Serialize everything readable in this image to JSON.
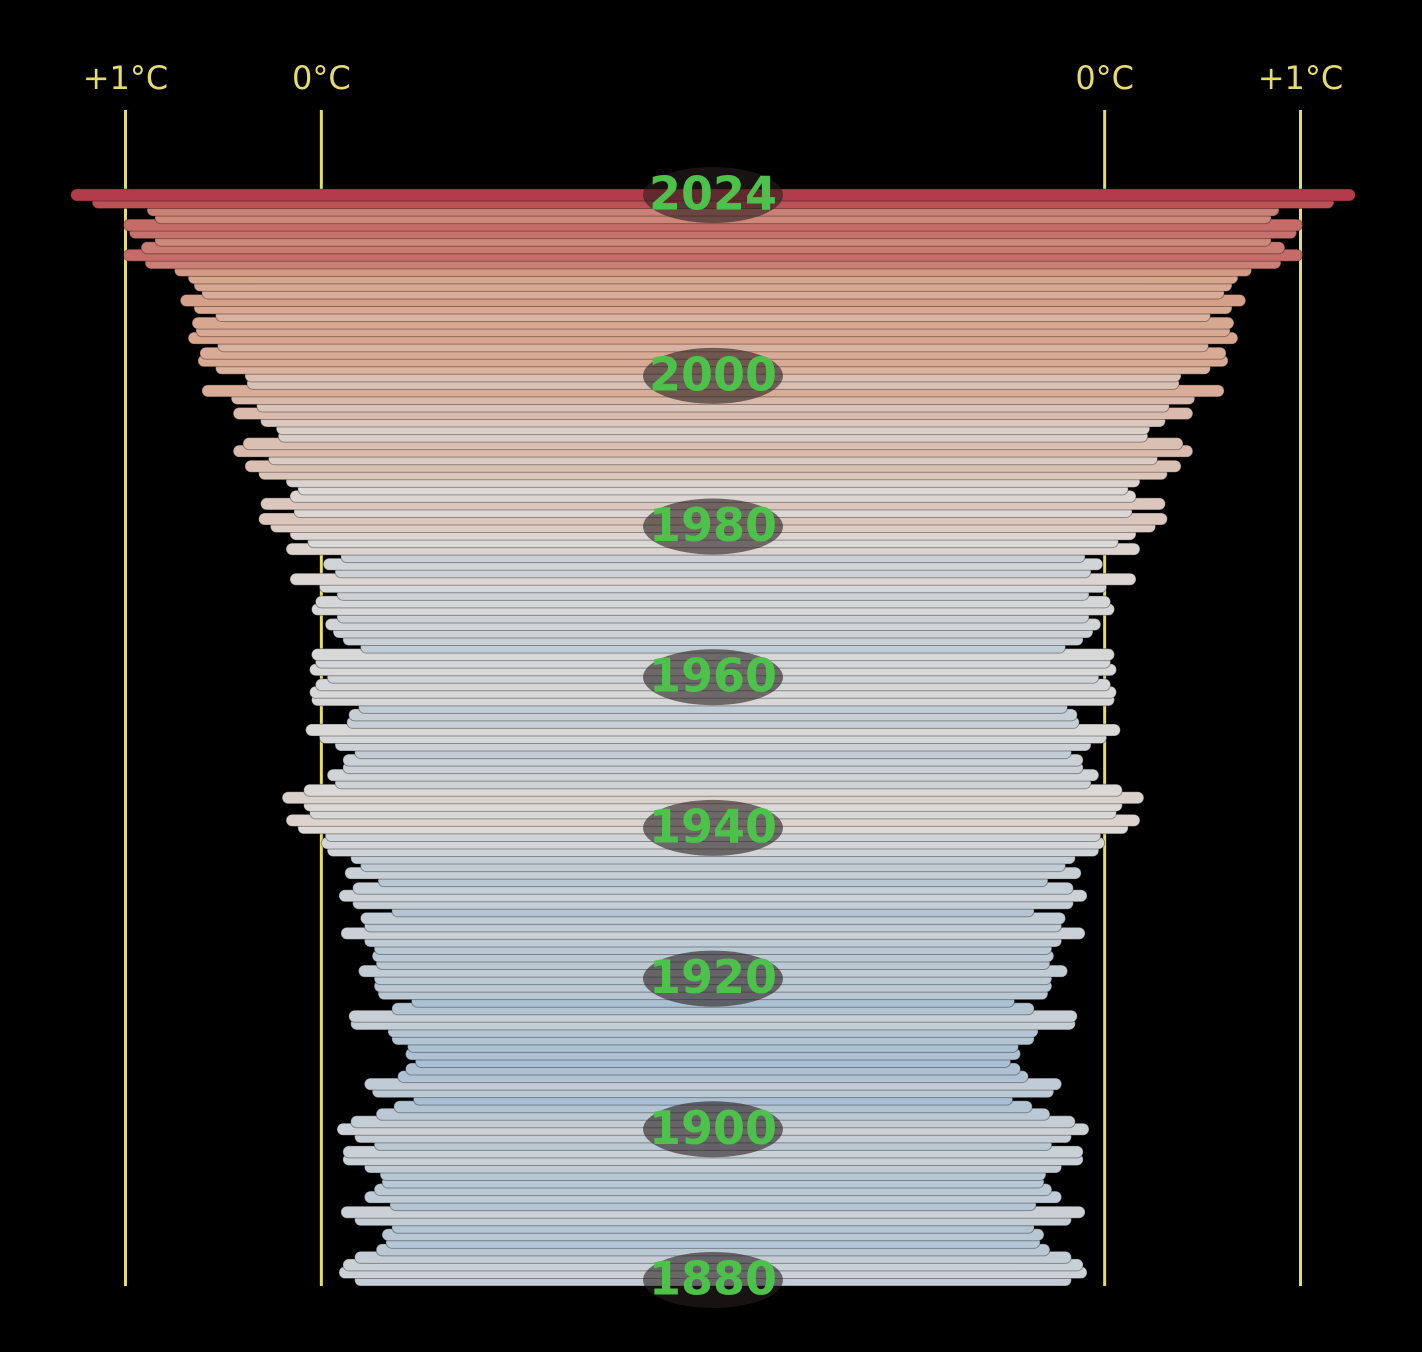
{
  "chart_data": {
    "type": "spiral-side",
    "x": [
      1880,
      1881,
      1882,
      1883,
      1884,
      1885,
      1886,
      1887,
      1888,
      1889,
      1890,
      1891,
      1892,
      1893,
      1894,
      1895,
      1896,
      1897,
      1898,
      1899,
      1900,
      1901,
      1902,
      1903,
      1904,
      1905,
      1906,
      1907,
      1908,
      1909,
      1910,
      1911,
      1912,
      1913,
      1914,
      1915,
      1916,
      1917,
      1918,
      1919,
      1920,
      1921,
      1922,
      1923,
      1924,
      1925,
      1926,
      1927,
      1928,
      1929,
      1930,
      1931,
      1932,
      1933,
      1934,
      1935,
      1936,
      1937,
      1938,
      1939,
      1940,
      1941,
      1942,
      1943,
      1944,
      1945,
      1946,
      1947,
      1948,
      1949,
      1950,
      1951,
      1952,
      1953,
      1954,
      1955,
      1956,
      1957,
      1958,
      1959,
      1960,
      1961,
      1962,
      1963,
      1964,
      1965,
      1966,
      1967,
      1968,
      1969,
      1970,
      1971,
      1972,
      1973,
      1974,
      1975,
      1976,
      1977,
      1978,
      1979,
      1980,
      1981,
      1982,
      1983,
      1984,
      1985,
      1986,
      1987,
      1988,
      1989,
      1990,
      1991,
      1992,
      1993,
      1994,
      1995,
      1996,
      1997,
      1998,
      1999,
      2000,
      2001,
      2002,
      2003,
      2004,
      2005,
      2006,
      2007,
      2008,
      2009,
      2010,
      2011,
      2012,
      2013,
      2014,
      2015,
      2016,
      2017,
      2018,
      2019,
      2020,
      2021,
      2022,
      2023,
      2024
    ],
    "values": [
      -0.17,
      -0.09,
      -0.11,
      -0.17,
      -0.28,
      -0.33,
      -0.31,
      -0.36,
      -0.17,
      -0.1,
      -0.35,
      -0.22,
      -0.27,
      -0.31,
      -0.3,
      -0.22,
      -0.11,
      -0.11,
      -0.27,
      -0.17,
      -0.08,
      -0.15,
      -0.28,
      -0.37,
      -0.47,
      -0.26,
      -0.22,
      -0.39,
      -0.43,
      -0.48,
      -0.43,
      -0.44,
      -0.36,
      -0.34,
      -0.15,
      -0.14,
      -0.36,
      -0.46,
      -0.29,
      -0.27,
      -0.27,
      -0.19,
      -0.28,
      -0.26,
      -0.27,
      -0.22,
      -0.1,
      -0.22,
      -0.2,
      -0.36,
      -0.16,
      -0.09,
      -0.16,
      -0.29,
      -0.12,
      -0.2,
      -0.15,
      -0.03,
      0.0,
      -0.02,
      0.12,
      0.18,
      0.06,
      0.09,
      0.2,
      0.09,
      -0.07,
      -0.03,
      -0.11,
      -0.11,
      -0.17,
      -0.07,
      0.01,
      0.08,
      -0.13,
      -0.14,
      -0.19,
      0.05,
      0.06,
      0.03,
      -0.03,
      0.06,
      0.03,
      0.05,
      -0.2,
      -0.11,
      -0.06,
      -0.02,
      -0.08,
      0.05,
      0.03,
      -0.08,
      0.01,
      0.16,
      -0.07,
      -0.01,
      -0.1,
      0.18,
      0.07,
      0.16,
      0.26,
      0.32,
      0.14,
      0.31,
      0.16,
      0.12,
      0.18,
      0.32,
      0.39,
      0.27,
      0.45,
      0.4,
      0.22,
      0.23,
      0.31,
      0.45,
      0.33,
      0.46,
      0.61,
      0.38,
      0.39,
      0.54,
      0.63,
      0.62,
      0.53,
      0.68,
      0.64,
      0.66,
      0.54,
      0.65,
      0.72,
      0.61,
      0.65,
      0.68,
      0.75,
      0.9,
      1.01,
      0.92,
      0.85,
      0.98,
      1.01,
      0.85,
      0.89,
      1.17,
      1.28
    ],
    "xlim": [
      -2,
      1.6
    ],
    "xticks": [
      {
        "value": 1,
        "label": "+1°C"
      },
      {
        "value": 0,
        "label": "0°C"
      }
    ],
    "ylim": [
      1880,
      2024
    ],
    "yticks": [
      1880,
      1900,
      1920,
      1940,
      1960,
      1980,
      2000,
      2024
    ],
    "colormap": [
      "#a9bfd2",
      "#dcdad8",
      "#d8a48c",
      "#b43c4a"
    ],
    "axis_color": "#e6dc6a"
  }
}
